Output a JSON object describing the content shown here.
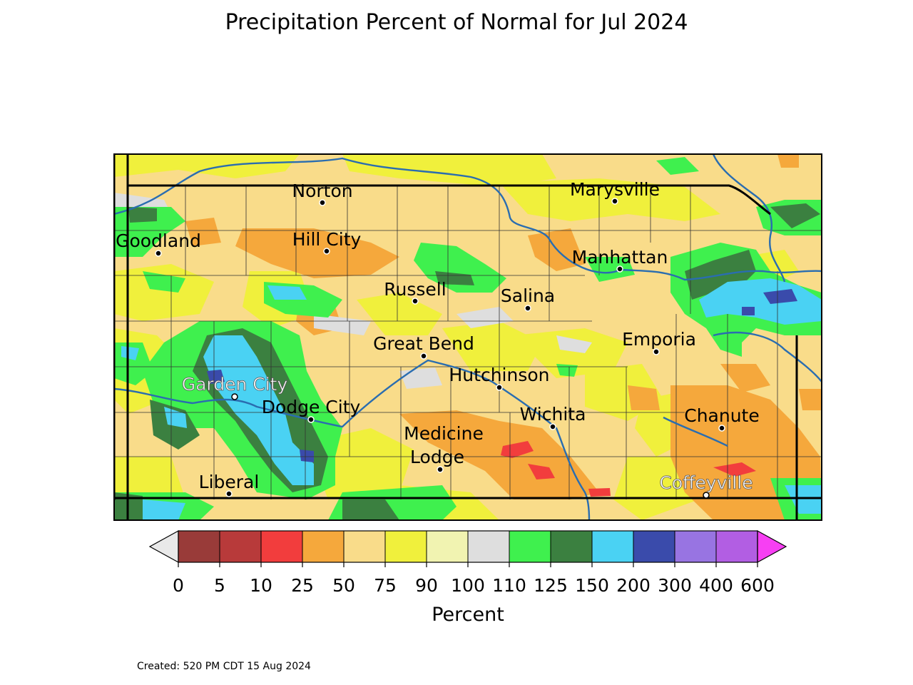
{
  "title": "Precipitation Percent of Normal for Jul 2024",
  "footer": "Created: 520 PM CDT 15 Aug 2024",
  "colorbar": {
    "label": "Percent",
    "tick_labels": [
      "0",
      "5",
      "10",
      "25",
      "50",
      "75",
      "90",
      "100",
      "110",
      "125",
      "150",
      "200",
      "300",
      "400",
      "600"
    ],
    "under_color": "#e9e9e9",
    "over_color": "#f73ff3",
    "bins": [
      {
        "range": "0-5",
        "color": "#993b39"
      },
      {
        "range": "5-10",
        "color": "#b83a3a"
      },
      {
        "range": "10-25",
        "color": "#f23d3d"
      },
      {
        "range": "25-50",
        "color": "#f5a83c"
      },
      {
        "range": "50-75",
        "color": "#f9dc8a"
      },
      {
        "range": "75-90",
        "color": "#f0f03c"
      },
      {
        "range": "90-100",
        "color": "#f1f3b1"
      },
      {
        "range": "100-110",
        "color": "#dedede"
      },
      {
        "range": "110-125",
        "color": "#3ff04e"
      },
      {
        "range": "125-150",
        "color": "#3b8040"
      },
      {
        "range": "150-200",
        "color": "#4ad2f3"
      },
      {
        "range": "200-300",
        "color": "#3a4bab"
      },
      {
        "range": "300-400",
        "color": "#9874e2"
      },
      {
        "range": "400-600",
        "color": "#b25ee3"
      }
    ]
  },
  "cities": [
    {
      "name": "Norton",
      "label_color": "black"
    },
    {
      "name": "Marysville",
      "label_color": "black"
    },
    {
      "name": "Goodland",
      "label_color": "black"
    },
    {
      "name": "Hill City",
      "label_color": "black"
    },
    {
      "name": "Manhattan",
      "label_color": "black"
    },
    {
      "name": "Russell",
      "label_color": "black"
    },
    {
      "name": "Salina",
      "label_color": "black"
    },
    {
      "name": "Emporia",
      "label_color": "black"
    },
    {
      "name": "Great Bend",
      "label_color": "black"
    },
    {
      "name": "Hutchinson",
      "label_color": "black"
    },
    {
      "name": "Garden City",
      "label_color": "white"
    },
    {
      "name": "Dodge City",
      "label_color": "black"
    },
    {
      "name": "Wichita",
      "label_color": "black"
    },
    {
      "name": "Chanute",
      "label_color": "black"
    },
    {
      "name": "Medicine Lodge",
      "label_color": "black"
    },
    {
      "name": "Liberal",
      "label_color": "black"
    },
    {
      "name": "Coffeyville",
      "label_color": "white"
    }
  ],
  "map_colors": {
    "state_border": "#000000",
    "county_lines": "#333333",
    "rivers": "#2a6db0"
  }
}
